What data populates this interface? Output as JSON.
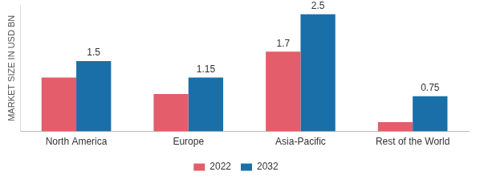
{
  "chart_data": {
    "type": "bar",
    "y_label": "MARKET SIZE IN USD BN",
    "categories": [
      "North America",
      "Europe",
      "Asia-Pacific",
      "Rest of the World"
    ],
    "series": [
      {
        "name": "2022",
        "color": "#e35d6a",
        "values": [
          1.15,
          0.8,
          1.7,
          0.2
        ],
        "value_labels": [
          null,
          null,
          "1.7",
          null
        ]
      },
      {
        "name": "2032",
        "color": "#1b6fa8",
        "values": [
          1.5,
          1.15,
          2.5,
          0.75
        ]
      }
    ],
    "ylim": [
      0,
      2.7
    ],
    "grid": false,
    "legend": "bottom",
    "data_labels": true,
    "tick_labels": "x"
  }
}
